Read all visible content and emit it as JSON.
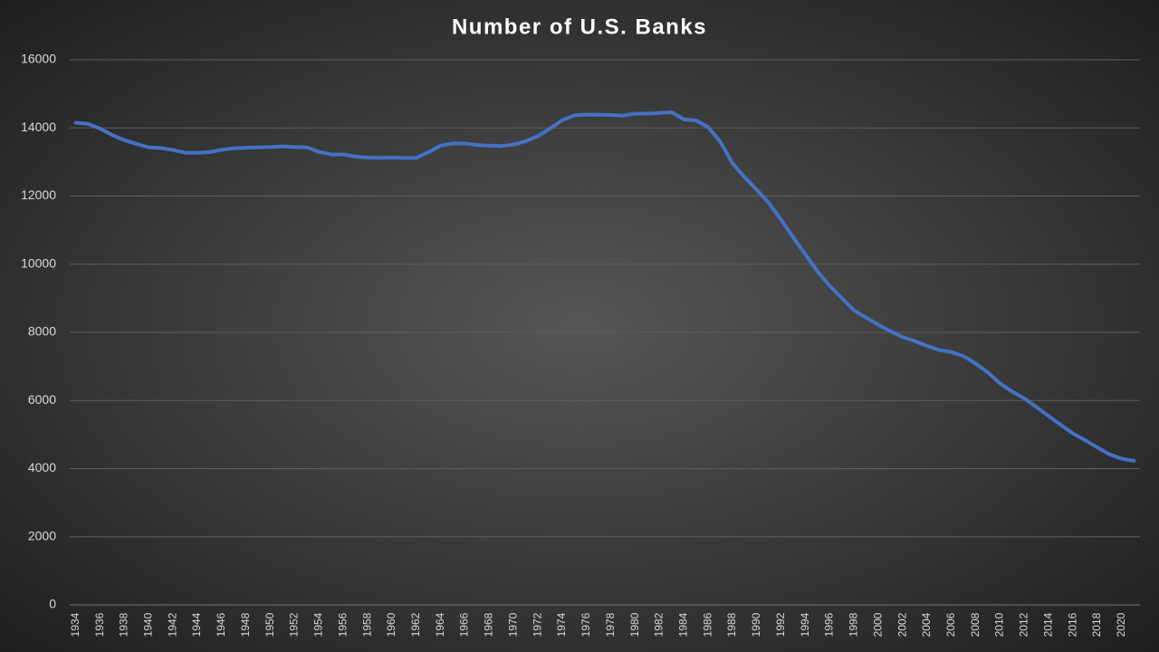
{
  "chart_data": {
    "type": "line",
    "title": "Number of U.S. Banks",
    "categories": [
      "1934",
      null,
      "1936",
      null,
      "1938",
      null,
      "1940",
      null,
      "1942",
      null,
      "1944",
      null,
      "1946",
      null,
      "1948",
      null,
      "1950",
      null,
      "1952",
      null,
      "1954",
      null,
      "1956",
      null,
      "1958",
      null,
      "1960",
      null,
      "1962",
      null,
      "1964",
      null,
      "1966",
      null,
      "1968",
      null,
      "1970",
      null,
      "1972",
      null,
      "1974",
      null,
      "1976",
      null,
      "1978",
      null,
      "1980",
      null,
      "1982",
      null,
      "1984",
      null,
      "1986",
      null,
      "1988",
      null,
      "1990",
      null,
      "1992",
      null,
      "1994",
      null,
      "1996",
      null,
      "1998",
      null,
      "2000",
      null,
      "2002",
      null,
      "2004",
      null,
      "2006",
      null,
      "2008",
      null,
      "2010",
      null,
      "2012",
      null,
      "2014",
      null,
      "2016",
      null,
      "2018",
      null,
      "2020",
      null
    ],
    "series": [
      {
        "color": "#4472c4",
        "values": [
          14150,
          14120,
          13980,
          13790,
          13640,
          13530,
          13430,
          13410,
          13350,
          13270,
          13270,
          13290,
          13360,
          13400,
          13420,
          13430,
          13440,
          13460,
          13440,
          13430,
          13300,
          13220,
          13220,
          13160,
          13130,
          13120,
          13130,
          13120,
          13120,
          13290,
          13480,
          13540,
          13540,
          13500,
          13480,
          13470,
          13510,
          13610,
          13760,
          13980,
          14230,
          14370,
          14390,
          14390,
          14380,
          14360,
          14420,
          14420,
          14440,
          14460,
          14250,
          14220,
          14020,
          13590,
          12960,
          12550,
          12180,
          11790,
          11300,
          10780,
          10280,
          9780,
          9360,
          9000,
          8640,
          8430,
          8220,
          8030,
          7860,
          7740,
          7600,
          7480,
          7420,
          7300,
          7080,
          6820,
          6500,
          6260,
          6060,
          5800,
          5540,
          5280,
          5030,
          4830,
          4620,
          4420,
          4290,
          4230
        ]
      }
    ],
    "ylim": [
      0,
      16000
    ],
    "yticks": [
      0,
      2000,
      4000,
      6000,
      8000,
      10000,
      12000,
      14000,
      16000
    ],
    "grid": true
  }
}
